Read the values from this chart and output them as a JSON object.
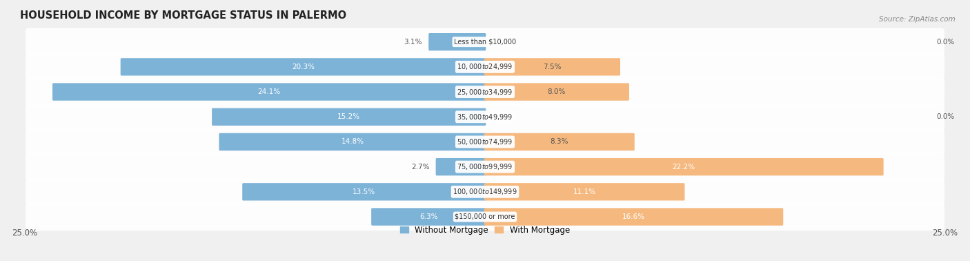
{
  "title": "HOUSEHOLD INCOME BY MORTGAGE STATUS IN PALERMO",
  "source": "Source: ZipAtlas.com",
  "categories": [
    "Less than $10,000",
    "$10,000 to $24,999",
    "$25,000 to $34,999",
    "$35,000 to $49,999",
    "$50,000 to $74,999",
    "$75,000 to $99,999",
    "$100,000 to $149,999",
    "$150,000 or more"
  ],
  "without_mortgage": [
    3.1,
    20.3,
    24.1,
    15.2,
    14.8,
    2.7,
    13.5,
    6.3
  ],
  "with_mortgage": [
    0.0,
    7.5,
    8.0,
    0.0,
    8.3,
    22.2,
    11.1,
    16.6
  ],
  "color_without": "#7EB3D8",
  "color_with": "#F5B97F",
  "axis_limit": 25.0,
  "bg_color": "#f0f0f0",
  "row_bg_color": "#e8e8ec",
  "bar_height": 0.6,
  "label_bg": "#ffffff",
  "legend_label_without": "Without Mortgage",
  "legend_label_with": "With Mortgage",
  "inside_label_threshold": 4.0
}
